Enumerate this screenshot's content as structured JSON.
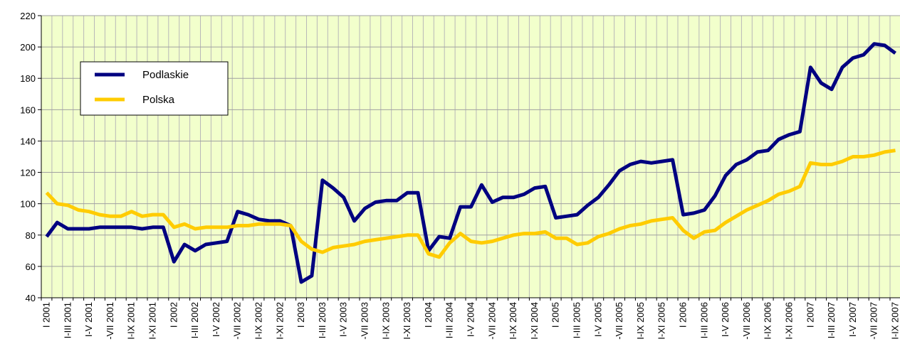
{
  "chart_data": {
    "type": "line",
    "categories": [
      "I 2001",
      null,
      "I-III 2001",
      null,
      "I-V 2001",
      null,
      "-VII 2001",
      null,
      "I-IX 2001",
      null,
      "I-XI 2001",
      null,
      "I 2002",
      null,
      "I-III 2002",
      null,
      "I-V 2002",
      null,
      "-VII 2002",
      null,
      "I-IX 2002",
      null,
      "I-XI 2002",
      null,
      "I 2003",
      null,
      "I-III 2003",
      null,
      "I-V 2003",
      null,
      "-VII 2003",
      null,
      "I-IX 2003",
      null,
      "I-XI 2003",
      null,
      "I 2004",
      null,
      "I-III 2004",
      null,
      "I-V 2004",
      null,
      "-VII 2004",
      null,
      "I-IX 2004",
      null,
      "I-XI 2004",
      null,
      "I 2005",
      null,
      "I-III 2005",
      null,
      "I-V 2005",
      null,
      "-VII 2005",
      null,
      "I-IX 2005",
      null,
      "I-XI 2005",
      null,
      "I 2006",
      null,
      "I-III 2006",
      null,
      "I-V 2006",
      null,
      "-VII 2006",
      null,
      "I-IX 2006",
      null,
      "I-XI 2006",
      null,
      "I 2007",
      null,
      "I-III 2007",
      null,
      "I-V 2007",
      null,
      "-VII 2007",
      null,
      "I-IX 2007"
    ],
    "series": [
      {
        "name": "Podlaskie",
        "color": "#000080",
        "values": [
          79,
          88,
          84,
          84,
          84,
          85,
          85,
          85,
          85,
          84,
          85,
          85,
          63,
          74,
          70,
          74,
          75,
          76,
          95,
          93,
          90,
          89,
          89,
          86,
          50,
          54,
          115,
          110,
          104,
          89,
          97,
          101,
          102,
          102,
          107,
          107,
          70,
          79,
          78,
          98,
          98,
          112,
          101,
          104,
          104,
          106,
          110,
          111,
          91,
          92,
          93,
          99,
          104,
          112,
          121,
          125,
          127,
          126,
          127,
          128,
          93,
          94,
          96,
          105,
          118,
          125,
          128,
          133,
          134,
          141,
          144,
          146,
          187,
          177,
          173,
          187,
          193,
          195,
          202,
          201,
          196
        ]
      },
      {
        "name": "Polska",
        "color": "#ffcc00",
        "values": [
          107,
          100,
          99,
          96,
          95,
          93,
          92,
          92,
          95,
          92,
          93,
          93,
          85,
          87,
          84,
          85,
          85,
          85,
          86,
          86,
          87,
          87,
          87,
          86,
          76,
          71,
          69,
          72,
          73,
          74,
          76,
          77,
          78,
          79,
          80,
          80,
          68,
          66,
          75,
          81,
          76,
          75,
          76,
          78,
          80,
          81,
          81,
          82,
          78,
          78,
          74,
          75,
          79,
          81,
          84,
          86,
          87,
          89,
          90,
          91,
          83,
          78,
          82,
          83,
          88,
          92,
          96,
          99,
          102,
          106,
          108,
          111,
          126,
          125,
          125,
          127,
          130,
          130,
          131,
          133,
          134
        ]
      }
    ],
    "ylim": [
      40,
      220
    ],
    "yticks": [
      40,
      60,
      80,
      100,
      120,
      140,
      160,
      180,
      200,
      220
    ],
    "grid": true,
    "legend": "upper left"
  }
}
